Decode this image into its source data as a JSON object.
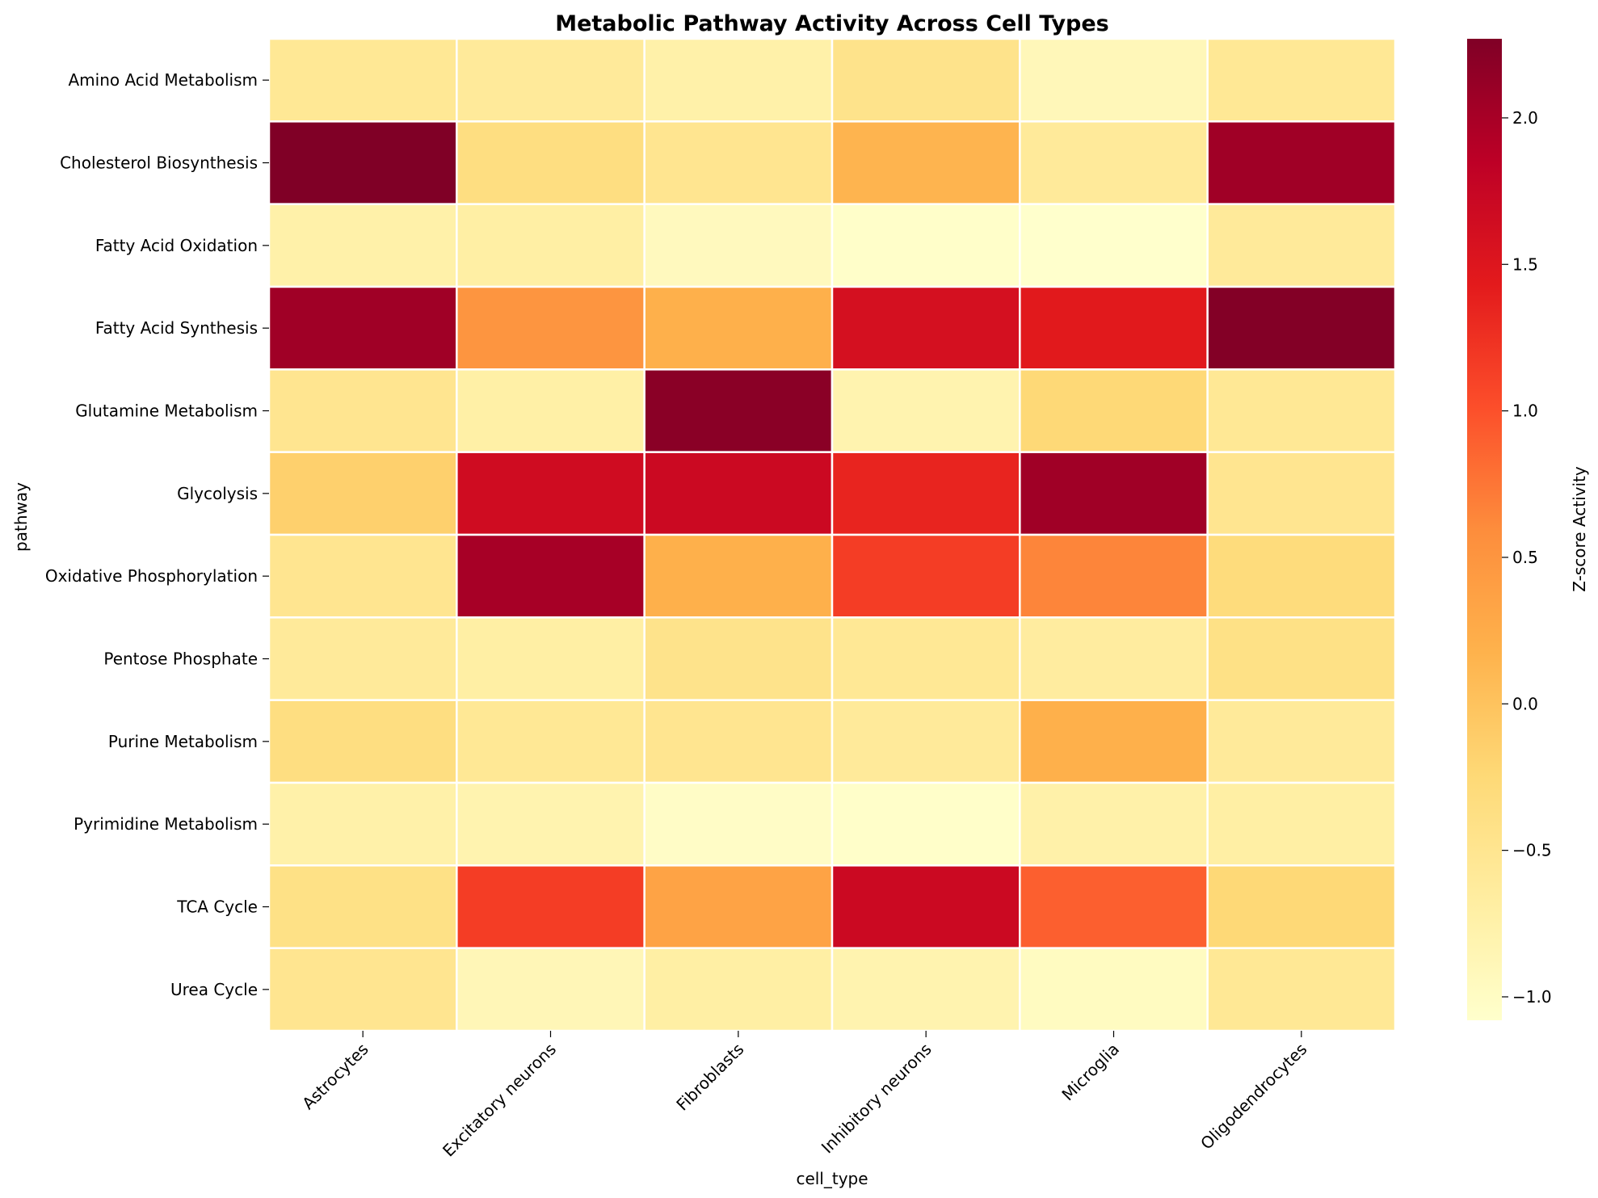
{
  "chart_data": {
    "type": "heatmap",
    "title": "Metabolic Pathway Activity Across Cell Types",
    "xlabel": "cell_type",
    "ylabel": "pathway",
    "colorbar_label": "Z-score Activity",
    "colormap": "YlOrRd",
    "vmin": -1.08,
    "vmax": 2.27,
    "colorbar_ticks": [
      "2.0",
      "1.5",
      "1.0",
      "0.5",
      "0.0",
      "−0.5",
      "−1.0"
    ],
    "colorbar_tick_values": [
      2.0,
      1.5,
      1.0,
      0.5,
      0.0,
      -0.5,
      -1.0
    ],
    "columns": [
      "Astrocytes",
      "Excitatory neurons",
      "Fibroblasts",
      "Inhibitory neurons",
      "Microglia",
      "Oligodendrocytes"
    ],
    "rows": [
      "Amino Acid Metabolism",
      "Cholesterol Biosynthesis",
      "Fatty Acid Oxidation",
      "Fatty Acid Synthesis",
      "Glutamine Metabolism",
      "Glycolysis",
      "Oxidative Phosphorylation",
      "Pentose Phosphate",
      "Purine Metabolism",
      "Pyrimidine Metabolism",
      "TCA Cycle",
      "Urea Cycle"
    ],
    "values": [
      [
        -0.55,
        -0.6,
        -0.75,
        -0.45,
        -0.9,
        -0.55
      ],
      [
        2.27,
        -0.35,
        -0.5,
        0.15,
        -0.6,
        2.05
      ],
      [
        -0.75,
        -0.7,
        -0.95,
        -1.05,
        -1.08,
        -0.6
      ],
      [
        2.05,
        0.5,
        0.2,
        1.6,
        1.45,
        2.25
      ],
      [
        -0.5,
        -0.72,
        2.2,
        -0.8,
        -0.25,
        -0.55
      ],
      [
        -0.15,
        1.65,
        1.7,
        1.35,
        2.05,
        -0.5
      ],
      [
        -0.5,
        2.0,
        0.2,
        1.15,
        0.65,
        -0.3
      ],
      [
        -0.6,
        -0.7,
        -0.45,
        -0.55,
        -0.65,
        -0.4
      ],
      [
        -0.35,
        -0.55,
        -0.5,
        -0.6,
        0.2,
        -0.6
      ],
      [
        -0.75,
        -0.8,
        -1.02,
        -1.05,
        -0.75,
        -0.7
      ],
      [
        -0.4,
        1.15,
        0.35,
        1.7,
        0.9,
        -0.25
      ],
      [
        -0.5,
        -0.88,
        -0.7,
        -0.8,
        -0.98,
        -0.55
      ]
    ]
  }
}
